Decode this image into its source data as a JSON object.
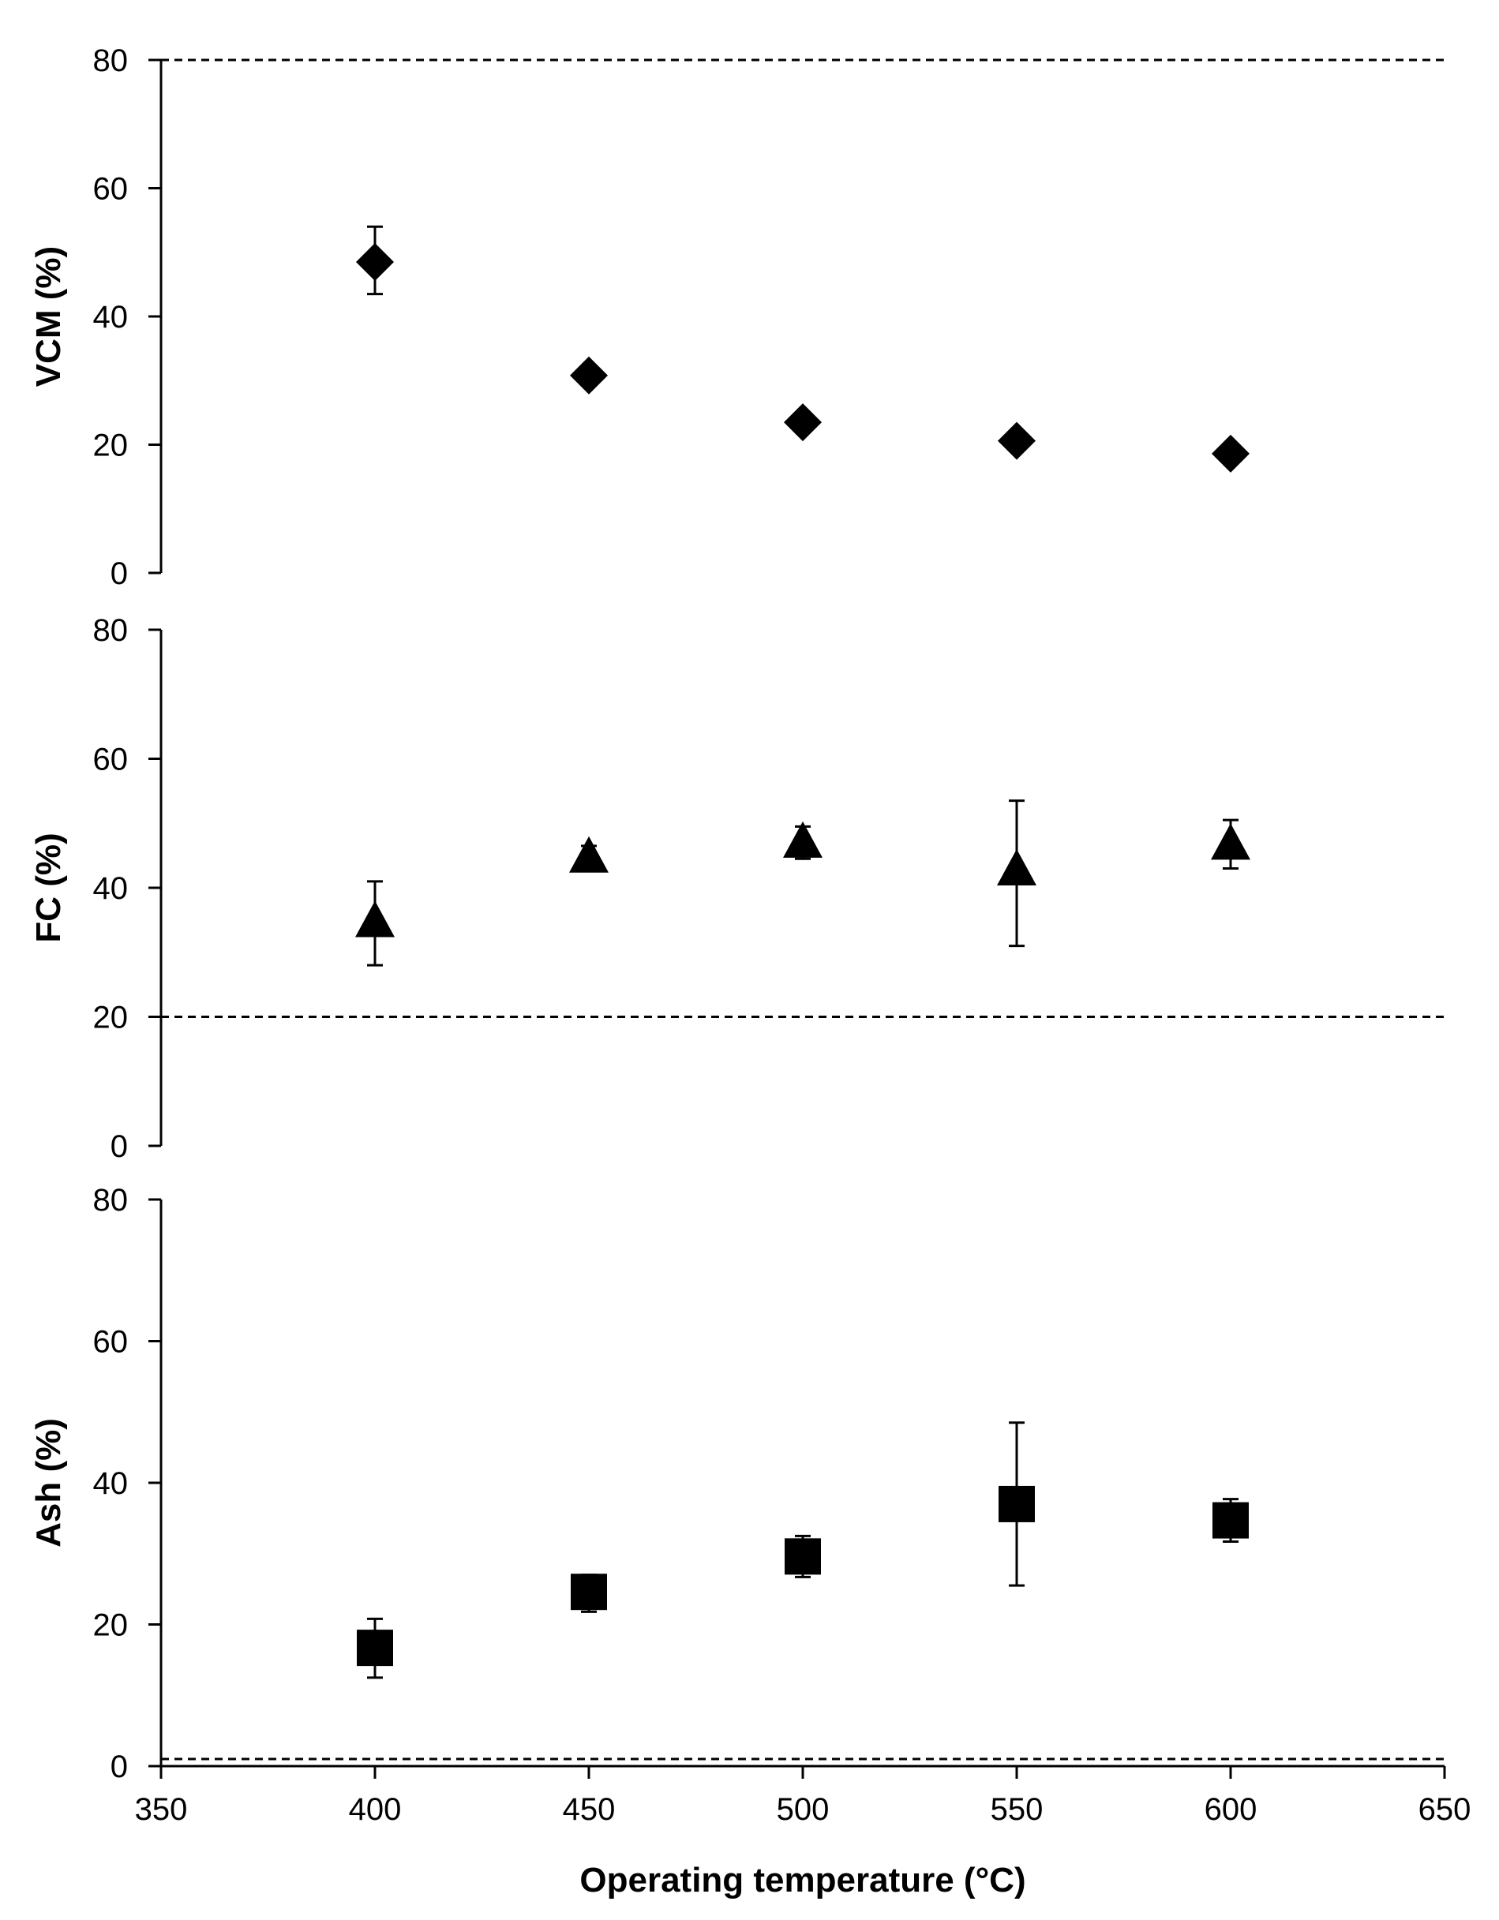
{
  "chart_data": {
    "type": "scatter",
    "layout": "three vertically stacked panels sharing the x axis",
    "x_axis": {
      "label": "Operating temperature (°C)",
      "range": [
        350,
        650
      ],
      "ticks": [
        350,
        400,
        450,
        500,
        550,
        600,
        650
      ]
    },
    "colors": {
      "marker": "#000000",
      "axis": "#000000",
      "reference_line": "#000000"
    },
    "panels": [
      {
        "id": "vcm",
        "ylabel": "VCM (%)",
        "ylim": [
          0,
          80
        ],
        "yticks": [
          0,
          20,
          40,
          60,
          80
        ],
        "marker": "diamond",
        "reference_line": {
          "y": 80,
          "style": "dashed"
        },
        "points": [
          {
            "x": 400,
            "y": 48.5,
            "err_low": 43.5,
            "err_high": 54
          },
          {
            "x": 450,
            "y": 30.8
          },
          {
            "x": 500,
            "y": 23.5
          },
          {
            "x": 550,
            "y": 20.6
          },
          {
            "x": 600,
            "y": 18.6
          }
        ]
      },
      {
        "id": "fc",
        "ylabel": "FC (%)",
        "ylim": [
          0,
          80
        ],
        "yticks": [
          0,
          20,
          40,
          60,
          80
        ],
        "marker": "triangle",
        "reference_line": {
          "y": 20,
          "style": "dashed"
        },
        "points": [
          {
            "x": 400,
            "y": 34.5,
            "err_low": 28,
            "err_high": 41
          },
          {
            "x": 450,
            "y": 44.5,
            "err_low": 43,
            "err_high": 46.5
          },
          {
            "x": 500,
            "y": 46.8,
            "err_low": 44.5,
            "err_high": 49.5
          },
          {
            "x": 550,
            "y": 42.5,
            "err_low": 31,
            "err_high": 53.5
          },
          {
            "x": 600,
            "y": 46.5,
            "err_low": 43,
            "err_high": 50.5
          }
        ]
      },
      {
        "id": "ash",
        "ylabel": "Ash (%)",
        "ylim": [
          0,
          80
        ],
        "yticks": [
          0,
          20,
          40,
          60,
          80
        ],
        "marker": "square",
        "reference_line": {
          "y": 1,
          "style": "dashed"
        },
        "points": [
          {
            "x": 400,
            "y": 16.7,
            "err_low": 12.5,
            "err_high": 20.8
          },
          {
            "x": 450,
            "y": 24.6,
            "err_low": 21.8,
            "err_high": 27
          },
          {
            "x": 500,
            "y": 29.6,
            "err_low": 26.7,
            "err_high": 32.5
          },
          {
            "x": 550,
            "y": 37,
            "err_low": 25.5,
            "err_high": 48.5
          },
          {
            "x": 600,
            "y": 34.7,
            "err_low": 31.7,
            "err_high": 37.7
          }
        ]
      }
    ]
  }
}
